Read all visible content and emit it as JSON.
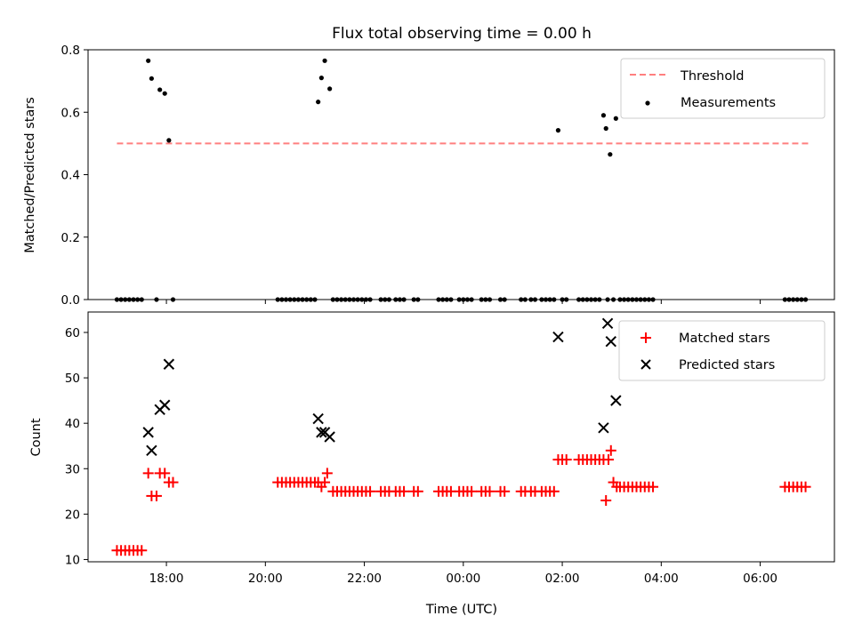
{
  "chart_data": [
    {
      "type": "scatter",
      "title": "Flux total observing time = 0.00 h",
      "ylabel": "Matched/Predicted stars",
      "xlabel": "",
      "xlim": [
        "16:25",
        "07:30"
      ],
      "ylim": [
        0,
        0.8
      ],
      "y_ticks": [
        "0.0",
        "0.2",
        "0.4",
        "0.6",
        "0.8"
      ],
      "legend_position": "top-right",
      "threshold": {
        "name": "Threshold",
        "value": 0.5,
        "x_range": [
          "17:00",
          "07:00"
        ],
        "color": "#ff7f7f",
        "style": "dashed"
      },
      "series": [
        {
          "name": "Measurements",
          "color": "#000000",
          "marker": "dot",
          "points": [
            [
              "17:00",
              0
            ],
            [
              "17:05",
              0
            ],
            [
              "17:10",
              0
            ],
            [
              "17:15",
              0
            ],
            [
              "17:20",
              0
            ],
            [
              "17:25",
              0
            ],
            [
              "17:30",
              0
            ],
            [
              "17:38",
              0.765
            ],
            [
              "17:42",
              0.708
            ],
            [
              "17:48",
              0
            ],
            [
              "17:52",
              0.672
            ],
            [
              "17:58",
              0.66
            ],
            [
              "18:03",
              0.51
            ],
            [
              "18:08",
              0
            ],
            [
              "20:15",
              0
            ],
            [
              "20:20",
              0
            ],
            [
              "20:25",
              0
            ],
            [
              "20:30",
              0
            ],
            [
              "20:35",
              0
            ],
            [
              "20:40",
              0
            ],
            [
              "20:45",
              0
            ],
            [
              "20:50",
              0
            ],
            [
              "20:55",
              0
            ],
            [
              "21:00",
              0
            ],
            [
              "21:04",
              0.633
            ],
            [
              "21:08",
              0.71
            ],
            [
              "21:12",
              0.765
            ],
            [
              "21:18",
              0.675
            ],
            [
              "21:22",
              0
            ],
            [
              "21:27",
              0
            ],
            [
              "21:32",
              0
            ],
            [
              "21:37",
              0
            ],
            [
              "21:42",
              0
            ],
            [
              "21:47",
              0
            ],
            [
              "21:52",
              0
            ],
            [
              "21:57",
              0
            ],
            [
              "22:02",
              0
            ],
            [
              "22:07",
              0
            ],
            [
              "22:20",
              0
            ],
            [
              "22:25",
              0
            ],
            [
              "22:30",
              0
            ],
            [
              "22:38",
              0
            ],
            [
              "22:43",
              0
            ],
            [
              "22:48",
              0
            ],
            [
              "23:00",
              0
            ],
            [
              "23:05",
              0
            ],
            [
              "23:30",
              0
            ],
            [
              "23:35",
              0
            ],
            [
              "23:40",
              0
            ],
            [
              "23:45",
              0
            ],
            [
              "23:55",
              0
            ],
            [
              "00:00",
              0
            ],
            [
              "00:05",
              0
            ],
            [
              "00:10",
              0
            ],
            [
              "00:22",
              0
            ],
            [
              "00:27",
              0
            ],
            [
              "00:32",
              0
            ],
            [
              "00:45",
              0
            ],
            [
              "00:50",
              0
            ],
            [
              "01:10",
              0
            ],
            [
              "01:15",
              0
            ],
            [
              "01:22",
              0
            ],
            [
              "01:27",
              0
            ],
            [
              "01:35",
              0
            ],
            [
              "01:40",
              0
            ],
            [
              "01:45",
              0
            ],
            [
              "01:50",
              0
            ],
            [
              "01:55",
              0.542
            ],
            [
              "02:00",
              0
            ],
            [
              "02:05",
              0
            ],
            [
              "02:20",
              0
            ],
            [
              "02:25",
              0
            ],
            [
              "02:30",
              0
            ],
            [
              "02:35",
              0
            ],
            [
              "02:40",
              0
            ],
            [
              "02:45",
              0
            ],
            [
              "02:50",
              0.59
            ],
            [
              "02:53",
              0.548
            ],
            [
              "02:55",
              0
            ],
            [
              "02:58",
              0.465
            ],
            [
              "03:02",
              0
            ],
            [
              "03:05",
              0.58
            ],
            [
              "03:10",
              0
            ],
            [
              "03:15",
              0
            ],
            [
              "03:20",
              0
            ],
            [
              "03:25",
              0
            ],
            [
              "03:30",
              0
            ],
            [
              "03:35",
              0
            ],
            [
              "03:40",
              0
            ],
            [
              "03:45",
              0
            ],
            [
              "03:50",
              0
            ],
            [
              "06:30",
              0
            ],
            [
              "06:35",
              0
            ],
            [
              "06:40",
              0
            ],
            [
              "06:45",
              0
            ],
            [
              "06:50",
              0
            ],
            [
              "06:55",
              0
            ]
          ]
        }
      ]
    },
    {
      "type": "scatter",
      "title": "",
      "ylabel": "Count",
      "xlabel": "Time (UTC)",
      "xlim": [
        "16:25",
        "07:30"
      ],
      "ylim": [
        9.5,
        64.5
      ],
      "y_ticks": [
        "10",
        "20",
        "30",
        "40",
        "50",
        "60"
      ],
      "x_ticks": [
        "18:00",
        "20:00",
        "22:00",
        "00:00",
        "02:00",
        "04:00",
        "06:00"
      ],
      "legend_position": "top-right",
      "series": [
        {
          "name": "Matched stars",
          "color": "#ff0000",
          "marker": "plus",
          "points": [
            [
              "17:00",
              12
            ],
            [
              "17:05",
              12
            ],
            [
              "17:10",
              12
            ],
            [
              "17:15",
              12
            ],
            [
              "17:20",
              12
            ],
            [
              "17:25",
              12
            ],
            [
              "17:30",
              12
            ],
            [
              "17:38",
              29
            ],
            [
              "17:42",
              24
            ],
            [
              "17:48",
              24
            ],
            [
              "17:52",
              29
            ],
            [
              "17:58",
              29
            ],
            [
              "18:03",
              27
            ],
            [
              "18:08",
              27
            ],
            [
              "20:15",
              27
            ],
            [
              "20:20",
              27
            ],
            [
              "20:25",
              27
            ],
            [
              "20:30",
              27
            ],
            [
              "20:35",
              27
            ],
            [
              "20:40",
              27
            ],
            [
              "20:45",
              27
            ],
            [
              "20:50",
              27
            ],
            [
              "20:55",
              27
            ],
            [
              "21:00",
              27
            ],
            [
              "21:04",
              27
            ],
            [
              "21:08",
              26
            ],
            [
              "21:12",
              27
            ],
            [
              "21:15",
              29
            ],
            [
              "21:22",
              25
            ],
            [
              "21:27",
              25
            ],
            [
              "21:32",
              25
            ],
            [
              "21:37",
              25
            ],
            [
              "21:42",
              25
            ],
            [
              "21:47",
              25
            ],
            [
              "21:52",
              25
            ],
            [
              "21:57",
              25
            ],
            [
              "22:02",
              25
            ],
            [
              "22:07",
              25
            ],
            [
              "22:20",
              25
            ],
            [
              "22:25",
              25
            ],
            [
              "22:30",
              25
            ],
            [
              "22:38",
              25
            ],
            [
              "22:43",
              25
            ],
            [
              "22:48",
              25
            ],
            [
              "23:00",
              25
            ],
            [
              "23:05",
              25
            ],
            [
              "23:30",
              25
            ],
            [
              "23:35",
              25
            ],
            [
              "23:40",
              25
            ],
            [
              "23:45",
              25
            ],
            [
              "23:55",
              25
            ],
            [
              "00:00",
              25
            ],
            [
              "00:05",
              25
            ],
            [
              "00:10",
              25
            ],
            [
              "00:22",
              25
            ],
            [
              "00:27",
              25
            ],
            [
              "00:32",
              25
            ],
            [
              "00:45",
              25
            ],
            [
              "00:50",
              25
            ],
            [
              "01:10",
              25
            ],
            [
              "01:15",
              25
            ],
            [
              "01:22",
              25
            ],
            [
              "01:27",
              25
            ],
            [
              "01:35",
              25
            ],
            [
              "01:40",
              25
            ],
            [
              "01:45",
              25
            ],
            [
              "01:50",
              25
            ],
            [
              "01:55",
              32
            ],
            [
              "02:00",
              32
            ],
            [
              "02:05",
              32
            ],
            [
              "02:20",
              32
            ],
            [
              "02:25",
              32
            ],
            [
              "02:30",
              32
            ],
            [
              "02:35",
              32
            ],
            [
              "02:40",
              32
            ],
            [
              "02:45",
              32
            ],
            [
              "02:50",
              32
            ],
            [
              "02:53",
              23
            ],
            [
              "02:56",
              32
            ],
            [
              "02:59",
              34
            ],
            [
              "03:02",
              27
            ],
            [
              "03:06",
              26
            ],
            [
              "03:10",
              26
            ],
            [
              "03:15",
              26
            ],
            [
              "03:20",
              26
            ],
            [
              "03:25",
              26
            ],
            [
              "03:30",
              26
            ],
            [
              "03:35",
              26
            ],
            [
              "03:40",
              26
            ],
            [
              "03:45",
              26
            ],
            [
              "03:50",
              26
            ],
            [
              "06:30",
              26
            ],
            [
              "06:35",
              26
            ],
            [
              "06:40",
              26
            ],
            [
              "06:45",
              26
            ],
            [
              "06:50",
              26
            ],
            [
              "06:55",
              26
            ]
          ]
        },
        {
          "name": "Predicted stars",
          "color": "#000000",
          "marker": "x",
          "points": [
            [
              "17:38",
              38
            ],
            [
              "17:42",
              34
            ],
            [
              "17:52",
              43
            ],
            [
              "17:58",
              44
            ],
            [
              "18:03",
              53
            ],
            [
              "21:04",
              41
            ],
            [
              "21:08",
              38
            ],
            [
              "21:12",
              38
            ],
            [
              "21:18",
              37
            ],
            [
              "01:55",
              59
            ],
            [
              "02:50",
              39
            ],
            [
              "02:55",
              62
            ],
            [
              "02:59",
              58
            ],
            [
              "03:05",
              45
            ]
          ]
        }
      ]
    }
  ]
}
